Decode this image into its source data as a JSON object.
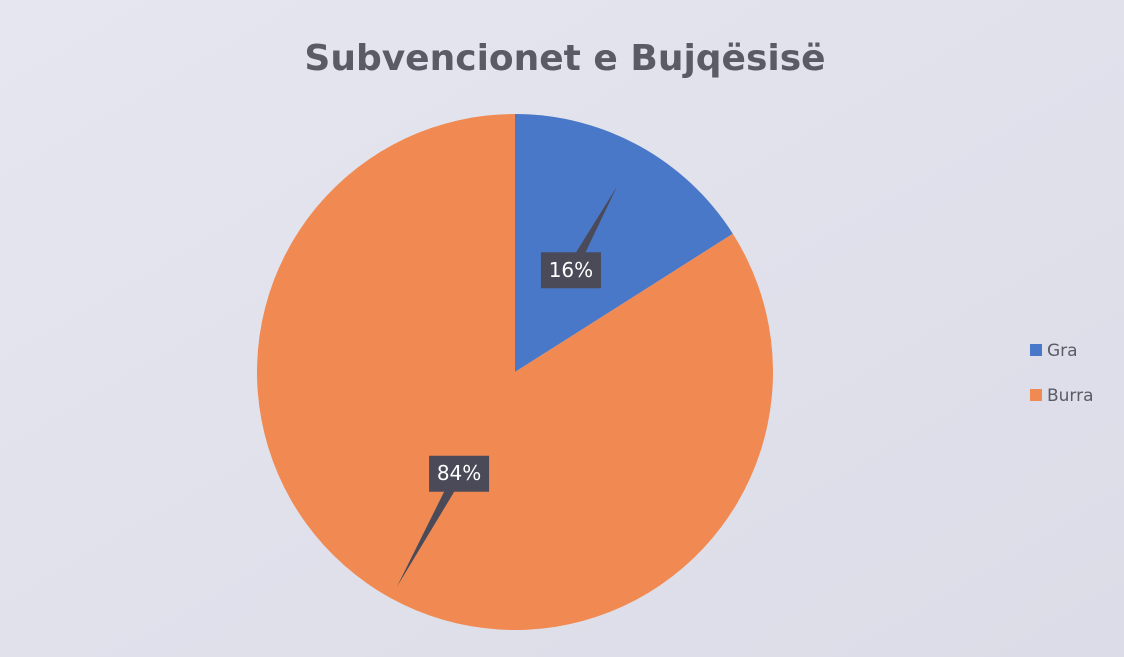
{
  "chart_data": {
    "type": "pie",
    "title": "Subvencionet e Bujqësisë",
    "categories": [
      "Gra",
      "Burra"
    ],
    "values": [
      16,
      84
    ],
    "value_labels": [
      "16%",
      "84%"
    ],
    "colors": [
      "#4a78c8",
      "#f08a52"
    ],
    "legend": "right"
  }
}
